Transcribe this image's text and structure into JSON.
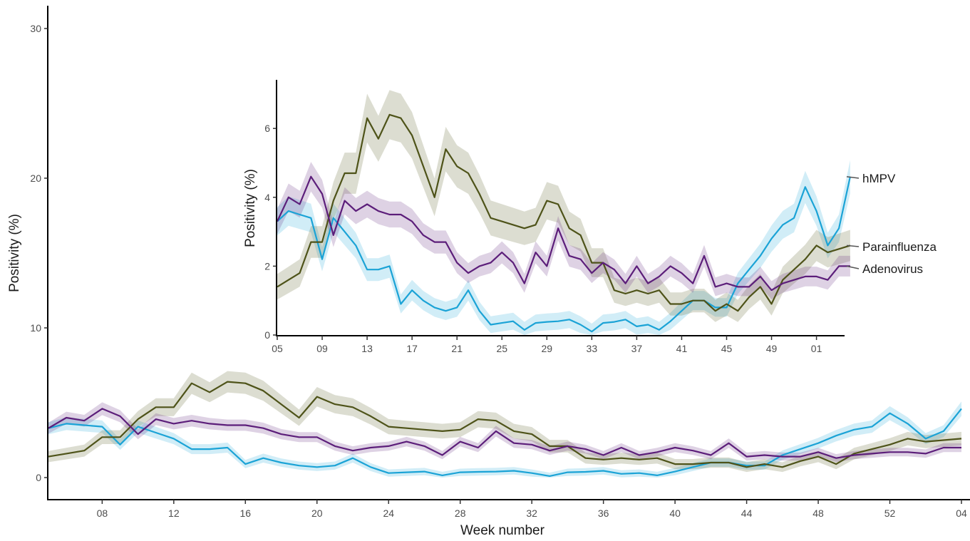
{
  "chart_data": [
    {
      "type": "line",
      "xlabel": "Week number",
      "ylabel": "Positivity (%)",
      "ylim": [
        0,
        30
      ],
      "yticks": [
        "0",
        "10",
        "20",
        "30"
      ],
      "xticks": [
        "08",
        "12",
        "16",
        "20",
        "24",
        "28",
        "32",
        "36",
        "40",
        "44",
        "48",
        "52",
        "04"
      ],
      "x": [
        5,
        6,
        7,
        8,
        9,
        10,
        11,
        12,
        13,
        14,
        15,
        16,
        17,
        18,
        19,
        20,
        21,
        22,
        23,
        24,
        25,
        26,
        27,
        28,
        29,
        30,
        31,
        32,
        33,
        34,
        35,
        36,
        37,
        38,
        39,
        40,
        41,
        42,
        43,
        44,
        45,
        46,
        47,
        48,
        49,
        50,
        51,
        52,
        53,
        54,
        55,
        56
      ],
      "grid": false,
      "legend": "none",
      "shaded_band": "95% confidence interval around each line",
      "series": [
        {
          "name": "hMPV",
          "color": "#1BA3D6",
          "values": [
            3.3,
            3.6,
            3.5,
            3.4,
            2.2,
            3.4,
            3.0,
            2.6,
            1.9,
            1.9,
            2.0,
            0.9,
            1.3,
            1.0,
            0.8,
            0.7,
            0.8,
            1.3,
            0.7,
            0.3,
            0.35,
            0.4,
            0.15,
            0.35,
            0.38,
            0.4,
            0.45,
            0.3,
            0.1,
            0.35,
            0.38,
            0.45,
            0.25,
            0.3,
            0.15,
            0.4,
            0.7,
            1.0,
            1.0,
            0.8,
            0.8,
            1.5,
            1.9,
            2.3,
            2.8,
            3.2,
            3.4,
            4.3,
            3.6,
            2.6,
            3.1,
            4.6
          ]
        },
        {
          "name": "Parainfluenza",
          "color": "#4E5319",
          "values": [
            1.4,
            1.6,
            1.8,
            2.7,
            2.7,
            3.9,
            4.7,
            4.7,
            6.3,
            5.7,
            6.4,
            6.3,
            5.8,
            4.9,
            4.0,
            5.4,
            4.9,
            4.7,
            4.1,
            3.4,
            3.3,
            3.2,
            3.1,
            3.2,
            3.9,
            3.8,
            3.1,
            2.9,
            2.1,
            2.1,
            1.3,
            1.2,
            1.3,
            1.2,
            1.3,
            0.9,
            0.9,
            1.0,
            1.0,
            0.7,
            0.9,
            0.7,
            1.1,
            1.4,
            0.9,
            1.6,
            1.9,
            2.2,
            2.6,
            2.4,
            2.5,
            2.6
          ]
        },
        {
          "name": "Adenovirus",
          "color": "#5C1E7A",
          "values": [
            3.3,
            4.0,
            3.8,
            4.6,
            4.1,
            2.9,
            3.9,
            3.6,
            3.8,
            3.6,
            3.5,
            3.5,
            3.3,
            2.9,
            2.7,
            2.7,
            2.1,
            1.8,
            2.0,
            2.1,
            2.4,
            2.1,
            1.5,
            2.4,
            2.0,
            3.1,
            2.3,
            2.2,
            1.8,
            2.1,
            1.9,
            1.5,
            2.0,
            1.5,
            1.7,
            2.0,
            1.8,
            1.5,
            2.3,
            1.4,
            1.5,
            1.4,
            1.4,
            1.7,
            1.3,
            1.5,
            1.6,
            1.7,
            1.7,
            1.6,
            2.0,
            2.0
          ]
        }
      ]
    },
    {
      "type": "line",
      "xlabel": "",
      "ylabel": "Positivity (%)",
      "ylim": [
        0,
        7.5
      ],
      "yticks": [
        "0",
        "2",
        "4",
        "6"
      ],
      "xticks": [
        "05",
        "09",
        "13",
        "17",
        "21",
        "25",
        "29",
        "33",
        "37",
        "41",
        "45",
        "49",
        "01"
      ],
      "grid": false,
      "legend": "labels at line ends",
      "note": "inset zoom of the same three series",
      "series_labels": [
        "hMPV",
        "Parainfluenza",
        "Adenovirus"
      ]
    }
  ]
}
